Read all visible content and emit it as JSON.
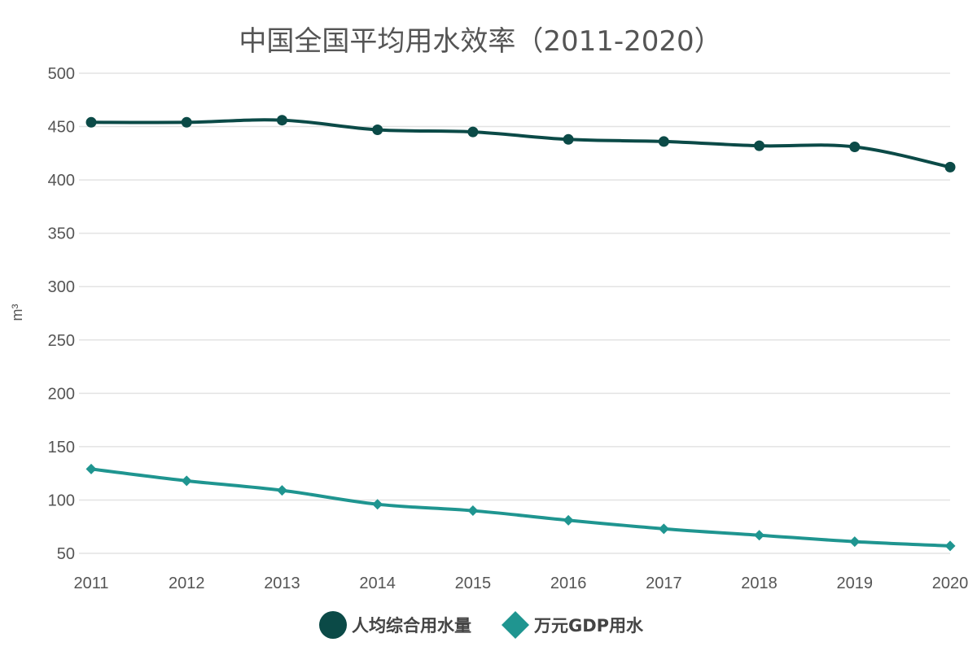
{
  "chart_data": {
    "type": "line",
    "title": "中国全国平均用水效率（2011-2020）",
    "ylabel": "m³",
    "xlabel": "",
    "x": [
      "2011",
      "2012",
      "2013",
      "2014",
      "2015",
      "2016",
      "2017",
      "2018",
      "2019",
      "2020"
    ],
    "ylim": [
      50,
      500
    ],
    "yticks": [
      50,
      100,
      150,
      200,
      250,
      300,
      350,
      400,
      450,
      500
    ],
    "grid": true,
    "legend_position": "bottom-center",
    "series": [
      {
        "name": "人均综合用水量",
        "color": "#0b4a47",
        "marker": "circle",
        "values": [
          454,
          454,
          456,
          447,
          445,
          438,
          436,
          432,
          431,
          412
        ]
      },
      {
        "name": "万元GDP用水",
        "color": "#1f9590",
        "marker": "diamond",
        "values": [
          129,
          118,
          109,
          96,
          90,
          81,
          73,
          67,
          61,
          57
        ]
      }
    ]
  }
}
